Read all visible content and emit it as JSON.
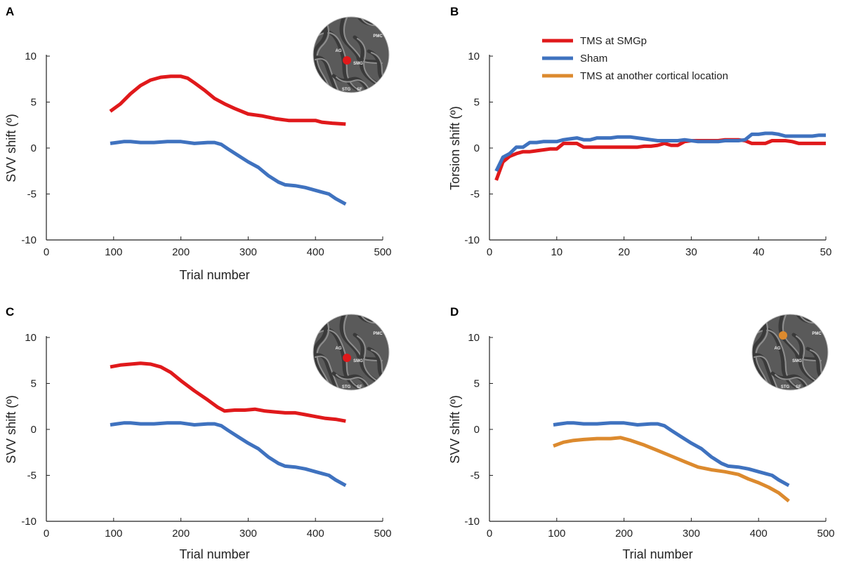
{
  "colors": {
    "tms_smgp": "#e0191b",
    "sham": "#3f72bf",
    "tms_other": "#dc8a2e",
    "axis": "#222222",
    "brain_bg": "#5a5a5a"
  },
  "legend": {
    "items": [
      {
        "label": "TMS at SMGp",
        "color_key": "tms_smgp"
      },
      {
        "label": "Sham",
        "color_key": "sham"
      },
      {
        "label": "TMS at another cortical location",
        "color_key": "tms_other"
      }
    ]
  },
  "brain_labels": {
    "pmc": "PMC",
    "ag": "AG",
    "smg": "SMG",
    "stg": "STG",
    "sf": "SF"
  },
  "chart_data": [
    {
      "panel": "A",
      "type": "line",
      "xlabel": "Trial number",
      "ylabel": "SVV shift (º)",
      "xlim": [
        0,
        500
      ],
      "ylim": [
        -10,
        10
      ],
      "xticks": [
        "0",
        "100",
        "200",
        "300",
        "400",
        "500"
      ],
      "yticks": [
        "-10",
        "-5",
        "0",
        "5",
        "10"
      ],
      "brain_inset": {
        "stim_color_key": "tms_smgp",
        "site": "SMGp"
      },
      "series": [
        {
          "name": "TMS at SMGp",
          "color_key": "tms_smgp",
          "x": [
            95,
            110,
            125,
            140,
            155,
            170,
            185,
            200,
            210,
            220,
            235,
            250,
            265,
            280,
            300,
            320,
            340,
            360,
            380,
            400,
            410,
            425,
            445
          ],
          "y": [
            4.0,
            4.8,
            5.9,
            6.8,
            7.4,
            7.7,
            7.8,
            7.8,
            7.6,
            7.1,
            6.3,
            5.4,
            4.8,
            4.3,
            3.7,
            3.5,
            3.2,
            3.0,
            3.0,
            3.0,
            2.8,
            2.7,
            2.6
          ]
        },
        {
          "name": "Sham",
          "color_key": "sham",
          "x": [
            95,
            105,
            115,
            125,
            140,
            160,
            180,
            200,
            220,
            240,
            250,
            260,
            270,
            285,
            300,
            315,
            330,
            345,
            355,
            370,
            385,
            400,
            410,
            420,
            430,
            445
          ],
          "y": [
            0.5,
            0.6,
            0.7,
            0.7,
            0.6,
            0.6,
            0.7,
            0.7,
            0.5,
            0.6,
            0.6,
            0.4,
            -0.1,
            -0.8,
            -1.5,
            -2.1,
            -3.0,
            -3.7,
            -4.0,
            -4.1,
            -4.3,
            -4.6,
            -4.8,
            -5.0,
            -5.5,
            -6.1
          ]
        }
      ]
    },
    {
      "panel": "B",
      "type": "line",
      "xlabel": "",
      "ylabel": "Torsion shift (º)",
      "xlim": [
        0,
        50
      ],
      "ylim": [
        -10,
        10
      ],
      "xticks": [
        "0",
        "10",
        "20",
        "30",
        "40",
        "50"
      ],
      "yticks": [
        "-10",
        "-5",
        "0",
        "5",
        "10"
      ],
      "series": [
        {
          "name": "TMS at SMGp",
          "color_key": "tms_smgp",
          "x": [
            1,
            2,
            3,
            4,
            5,
            6,
            7,
            8,
            9,
            10,
            11,
            12,
            13,
            14,
            15,
            16,
            17,
            18,
            19,
            20,
            21,
            22,
            23,
            24,
            25,
            26,
            27,
            28,
            29,
            30,
            31,
            32,
            33,
            34,
            35,
            36,
            37,
            38,
            39,
            40,
            41,
            42,
            43,
            44,
            45,
            46,
            47,
            48,
            49,
            50
          ],
          "y": [
            -3.5,
            -1.5,
            -0.9,
            -0.6,
            -0.4,
            -0.4,
            -0.3,
            -0.2,
            -0.1,
            -0.1,
            0.5,
            0.5,
            0.5,
            0.1,
            0.1,
            0.1,
            0.1,
            0.1,
            0.1,
            0.1,
            0.1,
            0.1,
            0.2,
            0.2,
            0.3,
            0.5,
            0.3,
            0.3,
            0.7,
            0.8,
            0.8,
            0.8,
            0.8,
            0.8,
            0.9,
            0.9,
            0.9,
            0.8,
            0.5,
            0.5,
            0.5,
            0.8,
            0.8,
            0.8,
            0.7,
            0.5,
            0.5,
            0.5,
            0.5,
            0.5
          ]
        },
        {
          "name": "Sham",
          "color_key": "sham",
          "x": [
            1,
            2,
            3,
            4,
            5,
            6,
            7,
            8,
            9,
            10,
            11,
            12,
            13,
            14,
            15,
            16,
            17,
            18,
            19,
            20,
            21,
            22,
            23,
            24,
            25,
            26,
            27,
            28,
            29,
            30,
            31,
            32,
            33,
            34,
            35,
            36,
            37,
            38,
            39,
            40,
            41,
            42,
            43,
            44,
            45,
            46,
            47,
            48,
            49,
            50
          ],
          "y": [
            -2.5,
            -1.0,
            -0.6,
            0.1,
            0.1,
            0.6,
            0.6,
            0.7,
            0.7,
            0.7,
            0.9,
            1.0,
            1.1,
            0.9,
            0.9,
            1.1,
            1.1,
            1.1,
            1.2,
            1.2,
            1.2,
            1.1,
            1.0,
            0.9,
            0.8,
            0.8,
            0.8,
            0.8,
            0.9,
            0.8,
            0.7,
            0.7,
            0.7,
            0.7,
            0.8,
            0.8,
            0.8,
            0.9,
            1.5,
            1.5,
            1.6,
            1.6,
            1.5,
            1.3,
            1.3,
            1.3,
            1.3,
            1.3,
            1.4,
            1.4
          ]
        }
      ]
    },
    {
      "panel": "C",
      "type": "line",
      "xlabel": "Trial number",
      "ylabel": "SVV shift (º)",
      "xlim": [
        0,
        500
      ],
      "ylim": [
        -10,
        10
      ],
      "xticks": [
        "0",
        "100",
        "200",
        "300",
        "400",
        "500"
      ],
      "yticks": [
        "-10",
        "-5",
        "0",
        "5",
        "10"
      ],
      "brain_inset": {
        "stim_color_key": "tms_smgp",
        "site": "SMGp"
      },
      "series": [
        {
          "name": "TMS at SMGp",
          "color_key": "tms_smgp",
          "x": [
            95,
            110,
            125,
            140,
            155,
            170,
            185,
            200,
            220,
            240,
            255,
            265,
            280,
            295,
            310,
            325,
            340,
            355,
            370,
            385,
            400,
            415,
            430,
            445
          ],
          "y": [
            6.8,
            7.0,
            7.1,
            7.2,
            7.1,
            6.8,
            6.2,
            5.3,
            4.2,
            3.2,
            2.4,
            2.0,
            2.1,
            2.1,
            2.2,
            2.0,
            1.9,
            1.8,
            1.8,
            1.6,
            1.4,
            1.2,
            1.1,
            0.9
          ]
        },
        {
          "name": "Sham",
          "color_key": "sham",
          "x": [
            95,
            105,
            115,
            125,
            140,
            160,
            180,
            200,
            220,
            240,
            250,
            260,
            270,
            285,
            300,
            315,
            330,
            345,
            355,
            370,
            385,
            400,
            410,
            420,
            430,
            445
          ],
          "y": [
            0.5,
            0.6,
            0.7,
            0.7,
            0.6,
            0.6,
            0.7,
            0.7,
            0.5,
            0.6,
            0.6,
            0.4,
            -0.1,
            -0.8,
            -1.5,
            -2.1,
            -3.0,
            -3.7,
            -4.0,
            -4.1,
            -4.3,
            -4.6,
            -4.8,
            -5.0,
            -5.5,
            -6.1
          ]
        }
      ]
    },
    {
      "panel": "D",
      "type": "line",
      "xlabel": "Trial number",
      "ylabel": "SVV shift (º)",
      "xlim": [
        0,
        500
      ],
      "ylim": [
        -10,
        10
      ],
      "xticks": [
        "0",
        "100",
        "200",
        "300",
        "400",
        "500"
      ],
      "yticks": [
        "-10",
        "-5",
        "0",
        "5",
        "10"
      ],
      "brain_inset": {
        "stim_color_key": "tms_other",
        "site": "another cortical location"
      },
      "series": [
        {
          "name": "Sham",
          "color_key": "sham",
          "x": [
            95,
            105,
            115,
            125,
            140,
            160,
            180,
            200,
            220,
            240,
            250,
            260,
            270,
            285,
            300,
            315,
            330,
            345,
            355,
            370,
            385,
            400,
            410,
            420,
            430,
            445
          ],
          "y": [
            0.5,
            0.6,
            0.7,
            0.7,
            0.6,
            0.6,
            0.7,
            0.7,
            0.5,
            0.6,
            0.6,
            0.4,
            -0.1,
            -0.8,
            -1.5,
            -2.1,
            -3.0,
            -3.7,
            -4.0,
            -4.1,
            -4.3,
            -4.6,
            -4.8,
            -5.0,
            -5.5,
            -6.1
          ]
        },
        {
          "name": "TMS at another cortical location",
          "color_key": "tms_other",
          "x": [
            95,
            110,
            125,
            140,
            160,
            180,
            195,
            210,
            230,
            250,
            270,
            290,
            310,
            330,
            350,
            370,
            385,
            400,
            415,
            430,
            445
          ],
          "y": [
            -1.8,
            -1.4,
            -1.2,
            -1.1,
            -1.0,
            -1.0,
            -0.9,
            -1.2,
            -1.7,
            -2.3,
            -2.9,
            -3.5,
            -4.1,
            -4.4,
            -4.6,
            -4.9,
            -5.4,
            -5.8,
            -6.3,
            -6.9,
            -7.8
          ]
        }
      ]
    }
  ]
}
